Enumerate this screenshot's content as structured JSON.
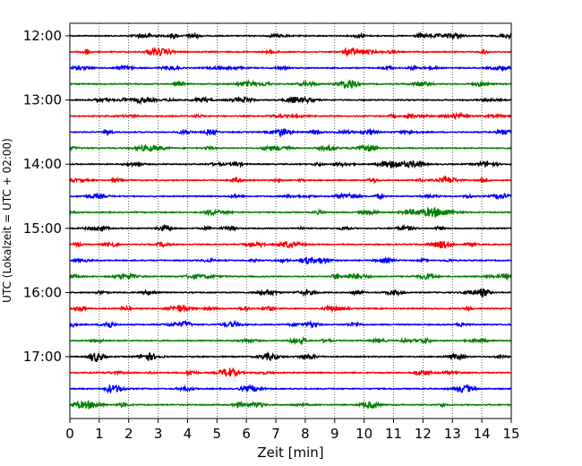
{
  "chart_data": {
    "type": "line",
    "title": "",
    "xlabel": "Zeit  [min]",
    "ylabel": "UTC (Lokalzeit = UTC + 02:00)",
    "xlim": [
      0,
      15
    ],
    "x_ticks": [
      0,
      1,
      2,
      3,
      4,
      5,
      6,
      7,
      8,
      9,
      10,
      11,
      12,
      13,
      14,
      15
    ],
    "x_tick_labels": [
      "0",
      "1",
      "2",
      "3",
      "4",
      "5",
      "6",
      "7",
      "8",
      "9",
      "10",
      "11",
      "12",
      "13",
      "14",
      "15"
    ],
    "x_grid": "dotted vertical lines at each minute",
    "y_tick_labels": [
      "12:00",
      "13:00",
      "14:00",
      "15:00",
      "16:00",
      "17:00"
    ],
    "trace_minutes_per_row": 15,
    "trace_start_utc": "12:00",
    "trace_end_utc": "18:00",
    "trace_count": 24,
    "trace_color_cycle": [
      "#000000",
      "#ff0000",
      "#0000ff",
      "#008000"
    ],
    "series_note": "",
    "rows": [
      {
        "start": "12:00",
        "color": "#000000"
      },
      {
        "start": "12:15",
        "color": "#ff0000"
      },
      {
        "start": "12:30",
        "color": "#0000ff"
      },
      {
        "start": "12:45",
        "color": "#008000"
      },
      {
        "start": "13:00",
        "color": "#000000"
      },
      {
        "start": "13:15",
        "color": "#ff0000"
      },
      {
        "start": "13:30",
        "color": "#0000ff"
      },
      {
        "start": "13:45",
        "color": "#008000"
      },
      {
        "start": "14:00",
        "color": "#000000"
      },
      {
        "start": "14:15",
        "color": "#ff0000"
      },
      {
        "start": "14:30",
        "color": "#0000ff"
      },
      {
        "start": "14:45",
        "color": "#008000"
      },
      {
        "start": "15:00",
        "color": "#000000"
      },
      {
        "start": "15:15",
        "color": "#ff0000"
      },
      {
        "start": "15:30",
        "color": "#0000ff"
      },
      {
        "start": "15:45",
        "color": "#008000"
      },
      {
        "start": "16:00",
        "color": "#000000"
      },
      {
        "start": "16:15",
        "color": "#ff0000"
      },
      {
        "start": "16:30",
        "color": "#0000ff"
      },
      {
        "start": "16:45",
        "color": "#008000"
      },
      {
        "start": "17:00",
        "color": "#000000"
      },
      {
        "start": "17:15",
        "color": "#ff0000"
      },
      {
        "start": "17:30",
        "color": "#0000ff"
      },
      {
        "start": "17:45",
        "color": "#008000"
      }
    ]
  }
}
